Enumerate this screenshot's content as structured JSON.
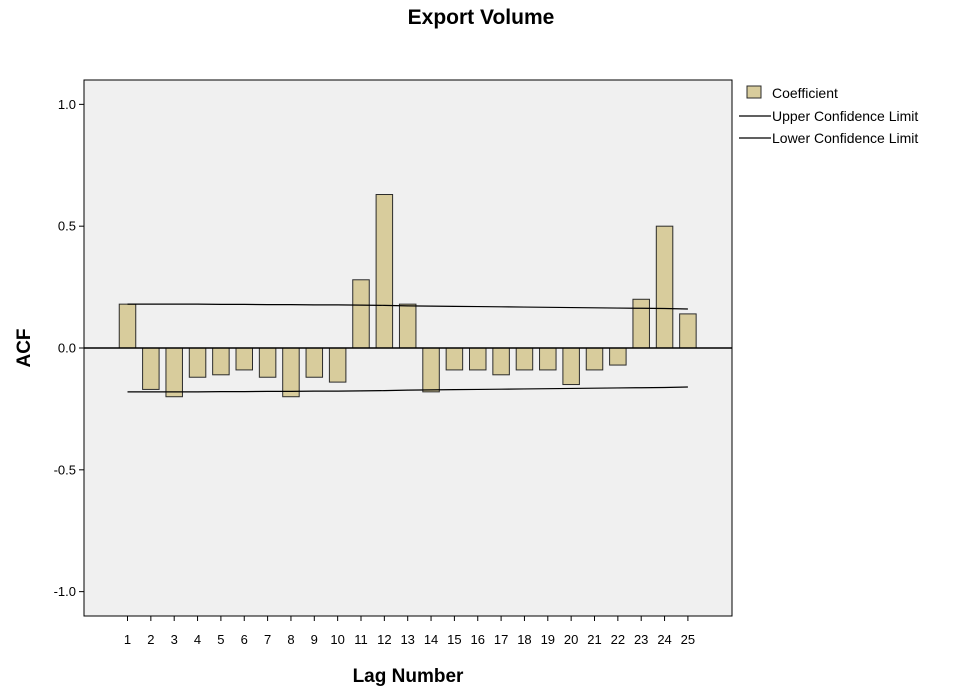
{
  "chart_data": {
    "type": "bar",
    "title": "Export Volume",
    "xlabel": "Lag Number",
    "ylabel": "ACF",
    "ylim": [
      -1.1,
      1.1
    ],
    "yticks": [
      1.0,
      0.5,
      0.0,
      -0.5,
      -1.0
    ],
    "ytick_labels": [
      "1.0",
      "0.5",
      "0.0",
      "-0.5",
      "-1.0"
    ],
    "categories": [
      "1",
      "2",
      "3",
      "4",
      "5",
      "6",
      "7",
      "8",
      "9",
      "10",
      "11",
      "12",
      "13",
      "14",
      "15",
      "16",
      "17",
      "18",
      "19",
      "20",
      "21",
      "22",
      "23",
      "24",
      "25"
    ],
    "series": [
      {
        "name": "Coefficient",
        "values": [
          0.18,
          -0.17,
          -0.2,
          -0.12,
          -0.11,
          -0.09,
          -0.12,
          -0.2,
          -0.12,
          -0.14,
          0.28,
          0.63,
          0.18,
          -0.18,
          -0.09,
          -0.09,
          -0.11,
          -0.09,
          -0.09,
          -0.15,
          -0.09,
          -0.07,
          0.2,
          0.5,
          0.14
        ]
      },
      {
        "name": "Upper Confidence Limit",
        "values": [
          0.18,
          0.18,
          0.18,
          0.18,
          0.179,
          0.179,
          0.178,
          0.178,
          0.177,
          0.177,
          0.176,
          0.175,
          0.173,
          0.172,
          0.171,
          0.17,
          0.169,
          0.168,
          0.167,
          0.166,
          0.165,
          0.164,
          0.163,
          0.162,
          0.16
        ]
      },
      {
        "name": "Lower Confidence Limit",
        "values": [
          -0.18,
          -0.18,
          -0.18,
          -0.18,
          -0.179,
          -0.179,
          -0.178,
          -0.178,
          -0.177,
          -0.177,
          -0.176,
          -0.175,
          -0.173,
          -0.172,
          -0.171,
          -0.17,
          -0.169,
          -0.168,
          -0.167,
          -0.166,
          -0.165,
          -0.164,
          -0.163,
          -0.162,
          -0.16
        ]
      }
    ],
    "legend_position": "right",
    "grid": false,
    "colors": {
      "bar_fill": "#d8cc9c",
      "bar_stroke": "#2b2b2b",
      "plot_background": "#f0f0f0",
      "line": "#000000"
    }
  }
}
